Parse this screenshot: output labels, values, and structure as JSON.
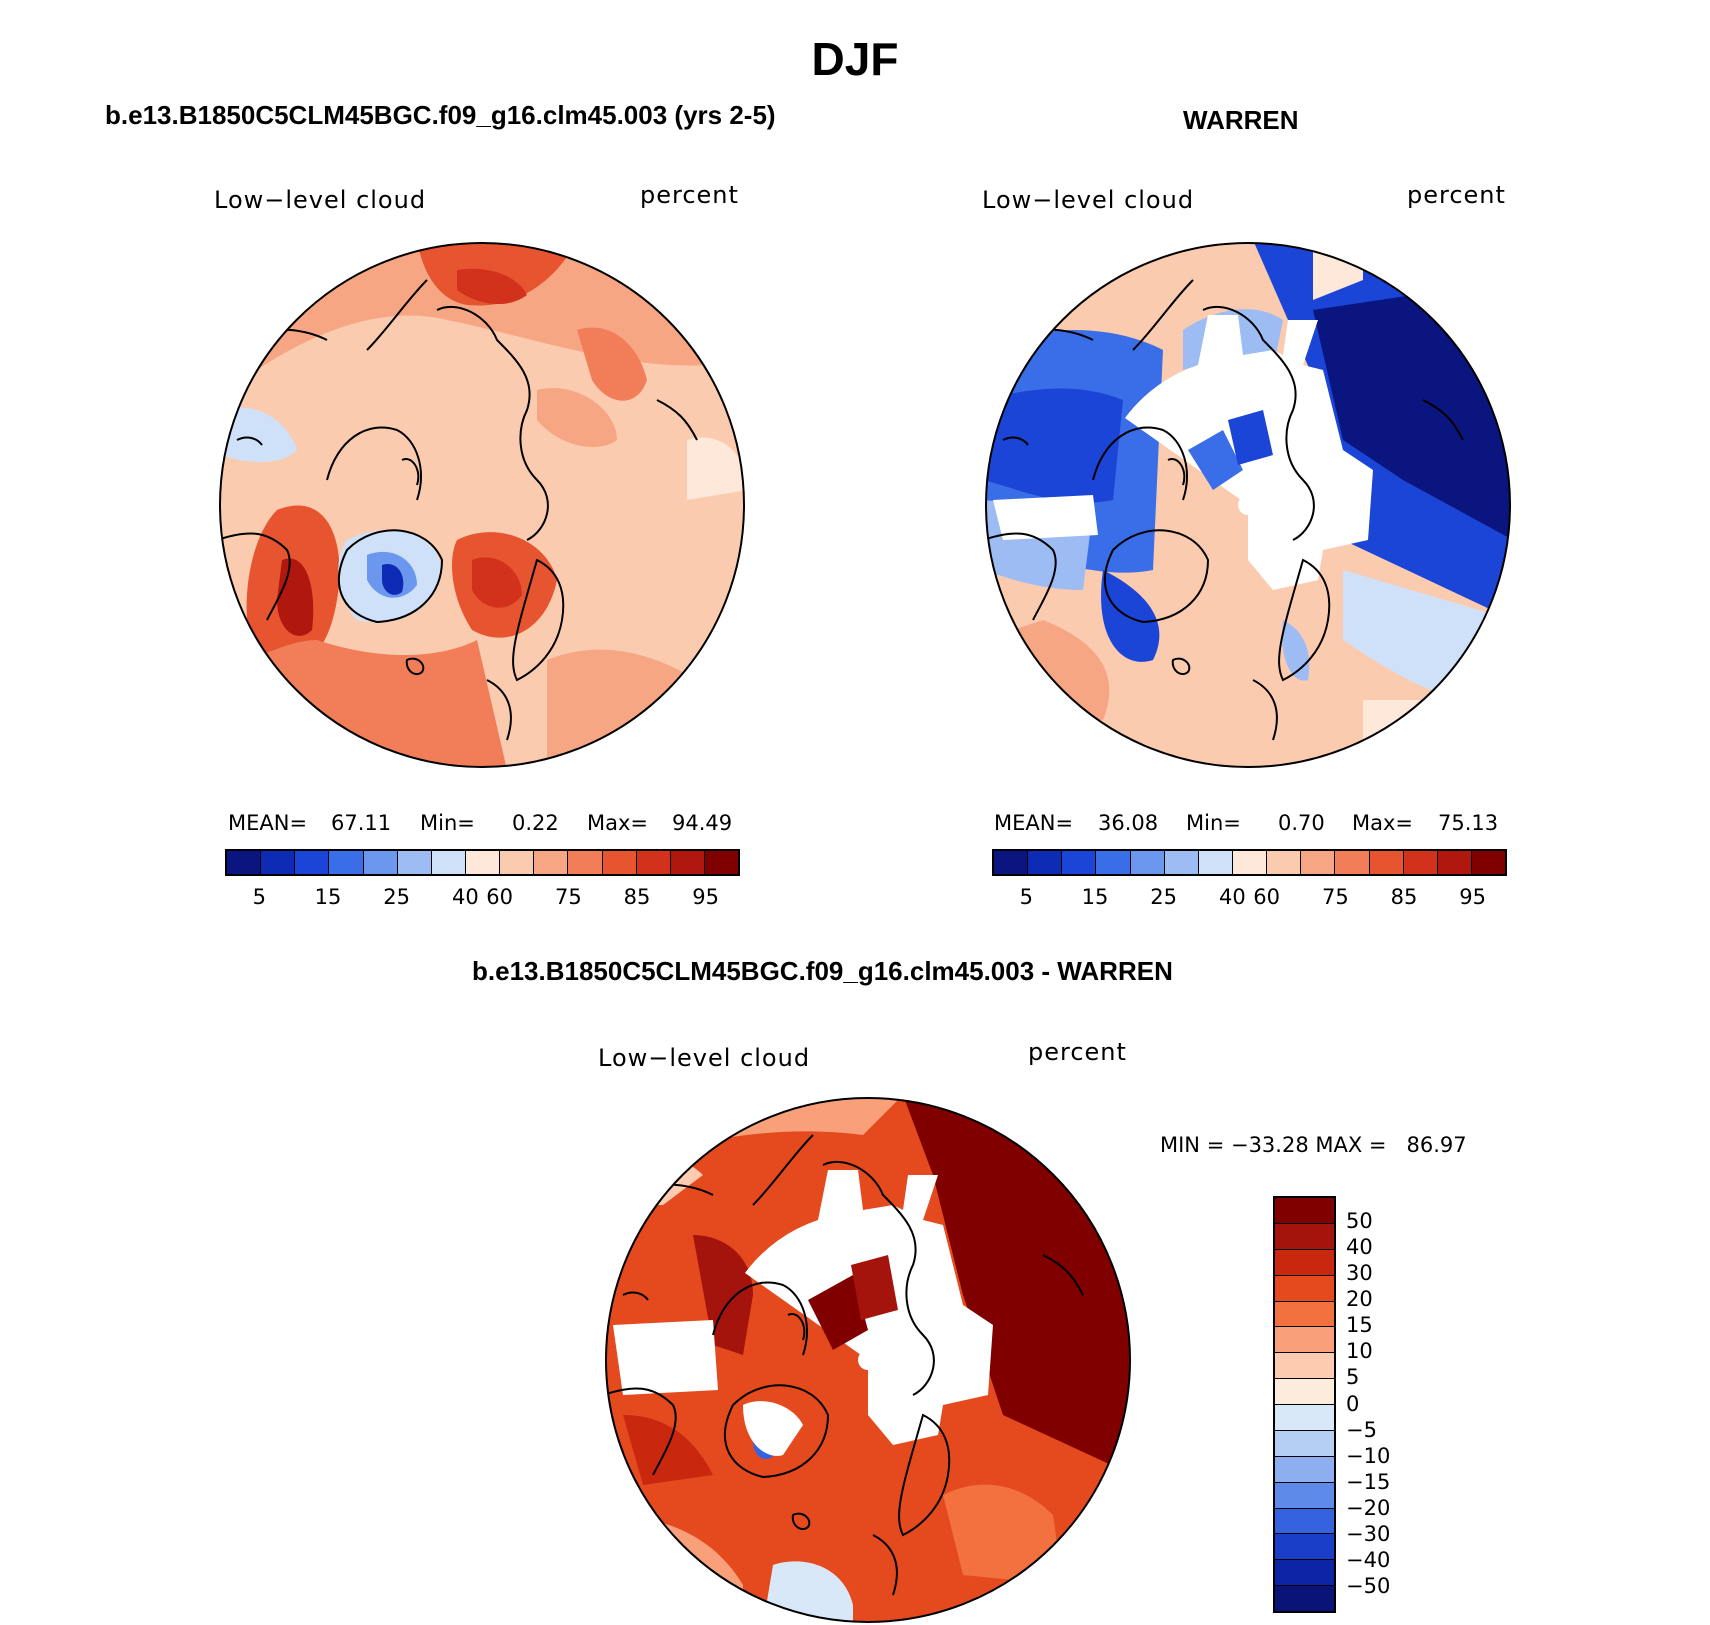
{
  "figure": {
    "title": "DJF"
  },
  "panels": {
    "left": {
      "title": "b.e13.B1850C5CLM45BGC.f09_g16.clm45.003 (yrs 2-5)",
      "variable": "Low−level cloud",
      "units": "percent",
      "stats": {
        "mean_label": "MEAN=",
        "mean": "67.11",
        "min_label": "Min=",
        "min": "0.22",
        "max_label": "Max=",
        "max": "94.49"
      }
    },
    "right": {
      "title": "WARREN",
      "variable": "Low−level cloud",
      "units": "percent",
      "stats": {
        "mean_label": "MEAN=",
        "mean": "36.08",
        "min_label": "Min=",
        "min": "0.70",
        "max_label": "Max=",
        "max": "75.13"
      }
    },
    "diff": {
      "title": "b.e13.B1850C5CLM45BGC.f09_g16.clm45.003 - WARREN",
      "variable": "Low−level cloud",
      "units": "percent",
      "minmax": "MIN = −33.28 MAX =   86.97"
    }
  },
  "colorbar_abs": {
    "ticks": [
      "5",
      "15",
      "25",
      "40",
      "60",
      "75",
      "85",
      "95"
    ],
    "colors": [
      "#0a1580",
      "#0d2bb4",
      "#1a45d6",
      "#3a6ee8",
      "#6c97ef",
      "#9dbcf4",
      "#cfe1f8",
      "#fde8d9",
      "#fbcbb0",
      "#f7a683",
      "#f17e58",
      "#e65430",
      "#d2321c",
      "#b0170f",
      "#800000"
    ]
  },
  "colorbar_diff": {
    "ticks": [
      "50",
      "40",
      "30",
      "20",
      "15",
      "10",
      "5",
      "0",
      "−5",
      "−10",
      "−15",
      "−20",
      "−30",
      "−40",
      "−50"
    ],
    "colors": [
      "#800000",
      "#a5130d",
      "#c9280f",
      "#e54a1f",
      "#f3703f",
      "#f9a07a",
      "#fccbb0",
      "#fdebdc",
      "#d8e8f8",
      "#b5cff3",
      "#8daeef",
      "#5e8ae9",
      "#3563e0",
      "#1a3ec8",
      "#0c24a6",
      "#0a1378"
    ]
  }
}
